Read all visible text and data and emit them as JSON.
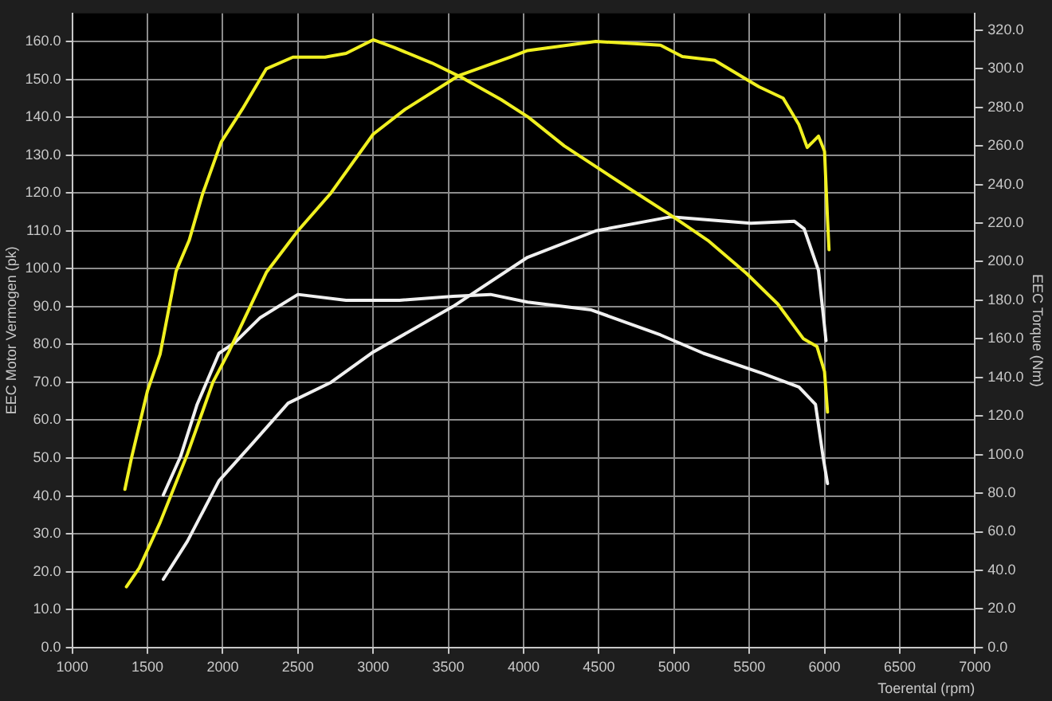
{
  "chart_data": {
    "type": "line",
    "xlabel": "Toerental (rpm)",
    "ylabel": "EEC Motor Vermogen (pk)",
    "y2label": "EEC Torque (Nm)",
    "xlim": [
      1000,
      7000
    ],
    "xticks": [
      {
        "value": 1000,
        "label": "1000"
      },
      {
        "value": 1500,
        "label": "1500"
      },
      {
        "value": 2000,
        "label": "2000"
      },
      {
        "value": 2500,
        "label": "2500"
      },
      {
        "value": 3000,
        "label": "3000"
      },
      {
        "value": 3500,
        "label": "3500"
      },
      {
        "value": 4000,
        "label": "4000"
      },
      {
        "value": 4500,
        "label": "4500"
      },
      {
        "value": 5000,
        "label": "5000"
      },
      {
        "value": 5500,
        "label": "5500"
      },
      {
        "value": 6000,
        "label": "6000"
      },
      {
        "value": 6500,
        "label": "6500"
      },
      {
        "value": 7000,
        "label": "7000"
      }
    ],
    "ylim": [
      0,
      167.4
    ],
    "yticks": [
      {
        "value": 0,
        "label": "0.0"
      },
      {
        "value": 10,
        "label": "10.0"
      },
      {
        "value": 20,
        "label": "20.0"
      },
      {
        "value": 30,
        "label": "30.0"
      },
      {
        "value": 40,
        "label": "40.0"
      },
      {
        "value": 50,
        "label": "50.0"
      },
      {
        "value": 60,
        "label": "60.0"
      },
      {
        "value": 70,
        "label": "70.0"
      },
      {
        "value": 80,
        "label": "80.0"
      },
      {
        "value": 90,
        "label": "90.0"
      },
      {
        "value": 100,
        "label": "100.0"
      },
      {
        "value": 110,
        "label": "110.0"
      },
      {
        "value": 120,
        "label": "120.0"
      },
      {
        "value": 130,
        "label": "130.0"
      },
      {
        "value": 140,
        "label": "140.0"
      },
      {
        "value": 150,
        "label": "150.0"
      },
      {
        "value": 160,
        "label": "160.0"
      }
    ],
    "y2lim": [
      0,
      328.7
    ],
    "y2ticks": [
      {
        "value": 0,
        "label": "0.0"
      },
      {
        "value": 20,
        "label": "20.0"
      },
      {
        "value": 40,
        "label": "40.0"
      },
      {
        "value": 60,
        "label": "60.0"
      },
      {
        "value": 80,
        "label": "80.0"
      },
      {
        "value": 100,
        "label": "100.0"
      },
      {
        "value": 120,
        "label": "120.0"
      },
      {
        "value": 140,
        "label": "140.0"
      },
      {
        "value": 160,
        "label": "160.0"
      },
      {
        "value": 180,
        "label": "180.0"
      },
      {
        "value": 200,
        "label": "200.0"
      },
      {
        "value": 220,
        "label": "220.0"
      },
      {
        "value": 240,
        "label": "240.0"
      },
      {
        "value": 260,
        "label": "260.0"
      },
      {
        "value": 280,
        "label": "280.0"
      },
      {
        "value": 300,
        "label": "300.0"
      },
      {
        "value": 320,
        "label": "320.0"
      }
    ],
    "grid": true,
    "legend": false,
    "marker": "none",
    "line_style": "solid",
    "series": [
      {
        "color": "#f0f020",
        "x": [
          1360,
          1446,
          1584,
          1765,
          1935,
          2040,
          2290,
          2500,
          2720,
          3000,
          3210,
          3570,
          3920,
          4026,
          4480,
          4910,
          5055,
          5270,
          5480,
          5565,
          5725,
          5830,
          5885,
          5960,
          6000,
          6020,
          6030
        ],
        "values": [
          16,
          21,
          33,
          51,
          70,
          78,
          99,
          110,
          120,
          135.5,
          142,
          151,
          156,
          157.6,
          160,
          159,
          156,
          155,
          150,
          148,
          145,
          138,
          132,
          135,
          131,
          113,
          105
        ]
      },
      {
        "color": "#f0f020",
        "axis": "y2",
        "x": [
          1350,
          1393,
          1500,
          1584,
          1690,
          1777,
          1866,
          1990,
          2130,
          2290,
          2467,
          2680,
          2820,
          3000,
          3140,
          3390,
          3600,
          3850,
          4030,
          4270,
          4740,
          4980,
          5225,
          5480,
          5690,
          5860,
          5950,
          6000,
          6020
        ],
        "values": [
          82,
          98,
          133,
          152,
          195,
          211,
          235,
          262,
          279,
          300,
          306,
          306,
          308,
          315,
          311,
          303,
          295,
          284,
          275,
          260,
          236,
          224,
          211,
          194,
          178,
          160,
          156,
          143,
          122
        ]
      },
      {
        "color": "#f0f0f0",
        "x": [
          1605,
          1765,
          1975,
          2190,
          2435,
          2720,
          3000,
          3530,
          4026,
          4480,
          4980,
          5510,
          5800,
          5865,
          5960,
          6010
        ],
        "values": [
          18,
          28,
          44,
          53.5,
          64.5,
          70,
          78,
          90,
          103,
          110,
          113.7,
          112,
          112.5,
          110.5,
          99.5,
          81
        ]
      },
      {
        "color": "#f0f0f0",
        "axis": "y2",
        "x": [
          1605,
          1720,
          1830,
          1975,
          2080,
          2250,
          2500,
          2820,
          3175,
          3530,
          3780,
          4026,
          4450,
          4910,
          5195,
          5590,
          5830,
          5940,
          5990,
          6020
        ],
        "values": [
          79,
          99,
          126,
          152.5,
          158,
          171,
          183,
          180,
          180,
          182,
          183,
          179,
          175,
          162,
          152.5,
          142,
          135,
          126,
          99,
          85
        ]
      }
    ]
  }
}
